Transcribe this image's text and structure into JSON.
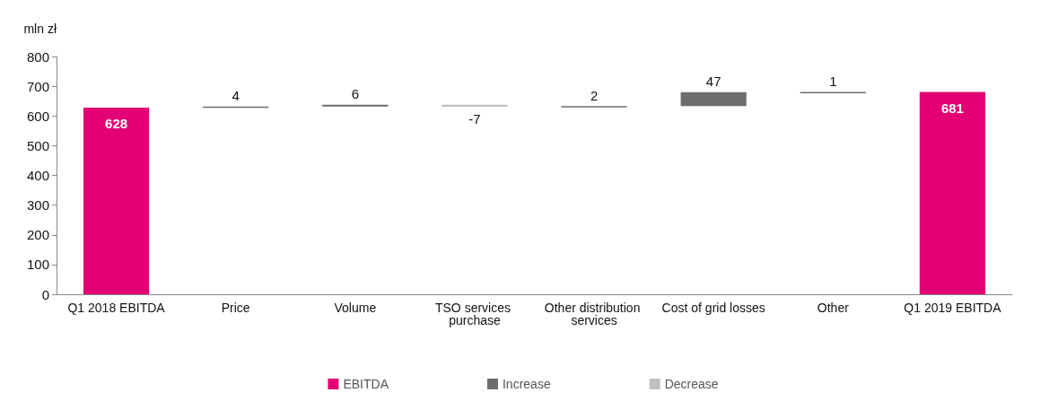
{
  "chart_data": {
    "type": "bar",
    "ylabel": "mln zł",
    "categories": [
      "Q1 2018 EBITDA",
      "Price",
      "Volume",
      "TSO services purchase",
      "Other distribution services",
      "Cost of grid losses",
      "Other",
      "Q1 2019 EBITDA"
    ],
    "series": [
      {
        "name": "EBITDA",
        "color": "#e20074",
        "values": [
          628,
          null,
          null,
          null,
          null,
          null,
          null,
          681
        ],
        "base": [
          0,
          null,
          null,
          null,
          null,
          null,
          null,
          0
        ]
      },
      {
        "name": "Increase",
        "color": "#6d6d6d",
        "values": [
          null,
          4,
          6,
          null,
          2,
          47,
          1,
          null
        ],
        "base": [
          null,
          628,
          632,
          null,
          631,
          633,
          680,
          null
        ]
      },
      {
        "name": "Decrease",
        "color": "#c0c0c0",
        "values": [
          null,
          null,
          null,
          -7,
          null,
          null,
          null,
          null
        ],
        "base": [
          null,
          null,
          null,
          638,
          null,
          null,
          null,
          null
        ]
      }
    ],
    "ylim": [
      0,
      800
    ],
    "yticks": [
      0,
      100,
      200,
      300,
      400,
      500,
      600,
      700,
      800
    ],
    "data_labels": true,
    "legend": "bottom",
    "grid": false
  }
}
